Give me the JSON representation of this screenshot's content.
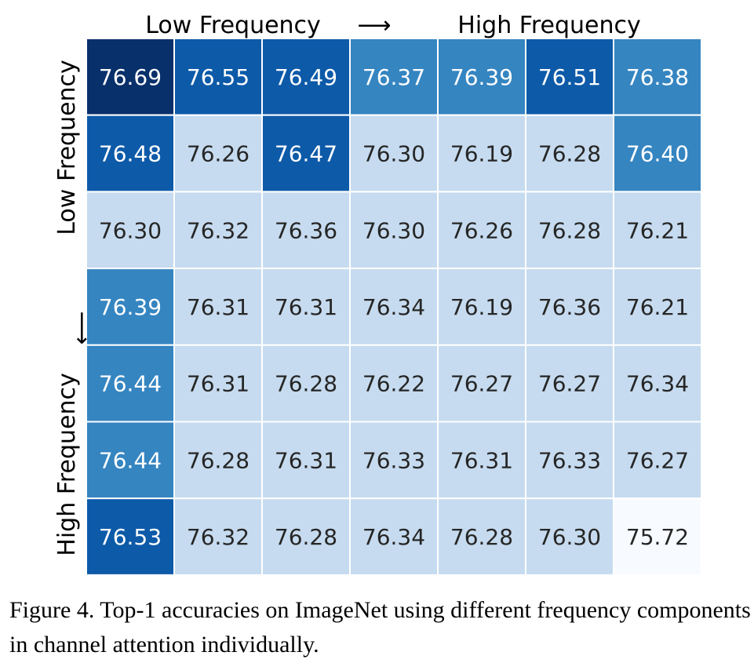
{
  "chart_data": {
    "type": "heatmap",
    "colormap": "Blues",
    "top_labels": [
      "Low Frequency",
      "⟶",
      "High Frequency"
    ],
    "left_labels": [
      "Low Frequency",
      "⟶",
      "High Frequency"
    ],
    "values": [
      [
        76.69,
        76.55,
        76.49,
        76.37,
        76.39,
        76.51,
        76.38
      ],
      [
        76.48,
        76.26,
        76.47,
        76.3,
        76.19,
        76.28,
        76.4
      ],
      [
        76.3,
        76.32,
        76.36,
        76.3,
        76.26,
        76.28,
        76.21
      ],
      [
        76.39,
        76.31,
        76.31,
        76.34,
        76.19,
        76.36,
        76.21
      ],
      [
        76.44,
        76.31,
        76.28,
        76.22,
        76.27,
        76.27,
        76.34
      ],
      [
        76.44,
        76.28,
        76.31,
        76.33,
        76.31,
        76.33,
        76.27
      ],
      [
        76.53,
        76.32,
        76.28,
        76.34,
        76.28,
        76.3,
        75.72
      ]
    ],
    "value_format": "2 decimals",
    "colors": {
      "very_dark": "#08306b",
      "dark": "#0d5aa8",
      "medium": "#3585c1",
      "light": "#c6dbef",
      "lightest": "#f7fbff",
      "grid": "#ffffff"
    }
  },
  "caption": "Figure 4. Top-1 accuracies on ImageNet using different frequency components in channel attention individually."
}
